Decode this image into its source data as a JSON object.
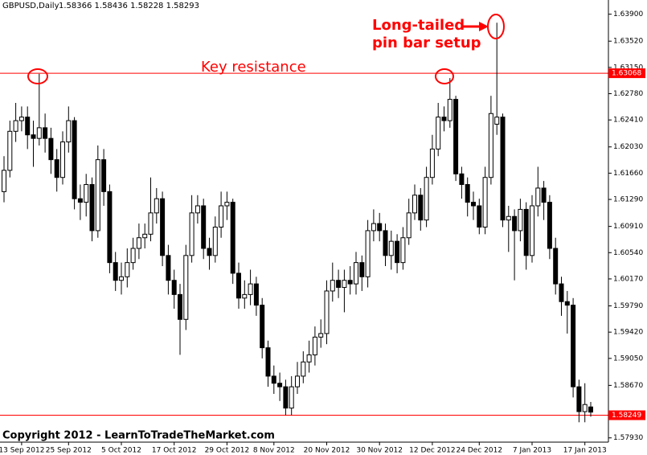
{
  "chart_data": {
    "type": "candlestick",
    "title": "GBPUSD,Daily",
    "subtitle": "1.58366 1.58436 1.58228 1.58293",
    "categories": [
      null,
      null,
      null,
      "13 Sep 2012",
      null,
      null,
      null,
      null,
      null,
      null,
      null,
      "25 Sep 2012",
      null,
      null,
      null,
      null,
      null,
      null,
      null,
      null,
      "5 Oct 2012",
      null,
      null,
      null,
      null,
      null,
      null,
      null,
      null,
      "17 Oct 2012",
      null,
      null,
      null,
      null,
      null,
      null,
      null,
      null,
      "29 Oct 2012",
      null,
      null,
      null,
      null,
      null,
      null,
      null,
      "8 Nov 2012",
      null,
      null,
      null,
      null,
      null,
      null,
      null,
      null,
      "20 Nov 2012",
      null,
      null,
      null,
      null,
      null,
      null,
      null,
      null,
      "30 Nov 2012",
      null,
      null,
      null,
      null,
      null,
      null,
      null,
      null,
      "12 Dec 2012",
      null,
      null,
      null,
      null,
      null,
      null,
      null,
      "24 Dec 2012",
      null,
      null,
      null,
      null,
      null,
      null,
      null,
      null,
      "7 Jan 2013",
      null,
      null,
      null,
      null,
      null,
      null,
      null,
      null,
      "17 Jan 2013",
      null
    ],
    "open": [
      1.614,
      1.617,
      1.6225,
      1.624,
      1.6245,
      1.622,
      1.6215,
      1.623,
      1.6215,
      1.6185,
      1.616,
      1.621,
      1.624,
      1.613,
      1.6125,
      1.615,
      1.6085,
      1.6185,
      1.614,
      1.604,
      1.6015,
      1.602,
      1.604,
      1.606,
      1.6075,
      1.608,
      1.611,
      1.613,
      1.605,
      1.6015,
      1.5995,
      1.596,
      1.605,
      1.611,
      1.612,
      1.606,
      1.605,
      1.609,
      1.612,
      1.6125,
      1.6025,
      1.599,
      1.5995,
      1.601,
      1.598,
      1.592,
      1.588,
      1.587,
      1.5865,
      1.5835,
      1.5865,
      1.588,
      1.59,
      1.591,
      1.5935,
      1.594,
      1.6,
      1.6015,
      1.6005,
      1.6015,
      1.601,
      1.604,
      1.602,
      1.6085,
      1.6095,
      1.6085,
      1.605,
      1.607,
      1.604,
      1.6075,
      1.611,
      1.6135,
      1.61,
      1.616,
      1.62,
      1.6245,
      1.624,
      1.627,
      1.6165,
      1.615,
      1.6125,
      1.612,
      1.609,
      1.616,
      1.6235,
      1.6245,
      1.61,
      1.6105,
      1.6085,
      1.6115,
      1.605,
      1.612,
      1.6145,
      1.6125,
      1.606,
      1.601,
      1.5985,
      1.598,
      1.5865,
      1.583,
      1.58366
    ],
    "high": [
      1.619,
      1.624,
      1.6265,
      1.626,
      1.626,
      1.624,
      1.6306,
      1.625,
      1.623,
      1.62,
      1.6225,
      1.626,
      1.6245,
      1.615,
      1.6165,
      1.616,
      1.6205,
      1.62,
      1.615,
      1.6055,
      1.604,
      1.606,
      1.6075,
      1.6095,
      1.6095,
      1.616,
      1.6145,
      1.614,
      1.6065,
      1.603,
      1.601,
      1.6065,
      1.6135,
      1.6135,
      1.613,
      1.6075,
      1.6105,
      1.614,
      1.614,
      1.613,
      1.604,
      1.6015,
      1.603,
      1.602,
      1.599,
      1.593,
      1.5895,
      1.5885,
      1.5875,
      1.588,
      1.59,
      1.5915,
      1.593,
      1.595,
      1.596,
      1.6015,
      1.604,
      1.603,
      1.603,
      1.6035,
      1.6055,
      1.605,
      1.61,
      1.6115,
      1.611,
      1.6095,
      1.6085,
      1.608,
      1.609,
      1.613,
      1.615,
      1.6145,
      1.6175,
      1.622,
      1.6265,
      1.626,
      1.63,
      1.6275,
      1.6175,
      1.616,
      1.614,
      1.613,
      1.6175,
      1.6275,
      1.6378,
      1.625,
      1.612,
      1.6115,
      1.613,
      1.6125,
      1.6135,
      1.6175,
      1.6155,
      1.6135,
      1.6075,
      1.602,
      1.6,
      1.599,
      1.5875,
      1.587,
      1.58436
    ],
    "low": [
      1.6125,
      1.616,
      1.621,
      1.6225,
      1.62,
      1.6175,
      1.6205,
      1.6195,
      1.6165,
      1.614,
      1.615,
      1.6195,
      1.6115,
      1.61,
      1.6105,
      1.607,
      1.6075,
      1.612,
      1.6025,
      1.6,
      1.5995,
      1.6005,
      1.603,
      1.6045,
      1.606,
      1.607,
      1.6095,
      1.6035,
      1.5995,
      1.5975,
      1.591,
      1.5945,
      1.604,
      1.6095,
      1.6045,
      1.603,
      1.604,
      1.6075,
      1.61,
      1.601,
      1.5975,
      1.5975,
      1.598,
      1.5965,
      1.5905,
      1.5865,
      1.5855,
      1.5845,
      1.5825,
      1.5825,
      1.5855,
      1.587,
      1.5885,
      1.5895,
      1.592,
      1.5925,
      1.5985,
      1.599,
      1.597,
      1.5995,
      1.5995,
      1.6,
      1.6005,
      1.607,
      1.607,
      1.6035,
      1.603,
      1.6025,
      1.603,
      1.6065,
      1.61,
      1.6085,
      1.609,
      1.615,
      1.619,
      1.6225,
      1.623,
      1.6155,
      1.613,
      1.6105,
      1.61,
      1.608,
      1.608,
      1.615,
      1.622,
      1.609,
      1.6055,
      1.6015,
      1.607,
      1.603,
      1.604,
      1.6105,
      1.61,
      1.6045,
      1.5995,
      1.5965,
      1.594,
      1.585,
      1.5815,
      1.5815,
      1.58228
    ],
    "close": [
      1.617,
      1.6225,
      1.624,
      1.6245,
      1.622,
      1.6215,
      1.623,
      1.6215,
      1.6185,
      1.616,
      1.621,
      1.624,
      1.613,
      1.6125,
      1.615,
      1.6085,
      1.6185,
      1.614,
      1.604,
      1.6015,
      1.602,
      1.604,
      1.606,
      1.6075,
      1.608,
      1.611,
      1.613,
      1.605,
      1.6015,
      1.5995,
      1.596,
      1.605,
      1.611,
      1.612,
      1.606,
      1.605,
      1.609,
      1.612,
      1.6125,
      1.6025,
      1.599,
      1.5995,
      1.601,
      1.598,
      1.592,
      1.588,
      1.587,
      1.5865,
      1.5835,
      1.5865,
      1.588,
      1.59,
      1.591,
      1.5935,
      1.594,
      1.6,
      1.6015,
      1.6005,
      1.6015,
      1.601,
      1.604,
      1.602,
      1.6085,
      1.6095,
      1.6085,
      1.605,
      1.607,
      1.604,
      1.6075,
      1.611,
      1.6135,
      1.61,
      1.616,
      1.62,
      1.6245,
      1.624,
      1.627,
      1.6165,
      1.615,
      1.6125,
      1.612,
      1.609,
      1.616,
      1.625,
      1.6245,
      1.61,
      1.6105,
      1.6085,
      1.6115,
      1.605,
      1.612,
      1.6145,
      1.6125,
      1.606,
      1.601,
      1.5985,
      1.598,
      1.5865,
      1.583,
      1.584,
      1.58293
    ],
    "ylim": [
      1.5787,
      1.641
    ],
    "yticks": [
      {
        "value": 1.639,
        "label": "1.63900"
      },
      {
        "value": 1.6352,
        "label": "1.63520"
      },
      {
        "value": 1.6315,
        "label": "1.63150"
      },
      {
        "value": 1.6278,
        "label": "1.62780"
      },
      {
        "value": 1.6241,
        "label": "1.62410"
      },
      {
        "value": 1.6203,
        "label": "1.62030"
      },
      {
        "value": 1.6166,
        "label": "1.61660"
      },
      {
        "value": 1.6129,
        "label": "1.61290"
      },
      {
        "value": 1.6091,
        "label": "1.60910"
      },
      {
        "value": 1.6054,
        "label": "1.60540"
      },
      {
        "value": 1.6017,
        "label": "1.60170"
      },
      {
        "value": 1.5979,
        "label": "1.59790"
      },
      {
        "value": 1.5942,
        "label": "1.59420"
      },
      {
        "value": 1.5905,
        "label": "1.59050"
      },
      {
        "value": 1.5867,
        "label": "1.58670"
      },
      {
        "value": 1.5793,
        "label": "1.57930"
      }
    ],
    "hlines": [
      {
        "value": 1.63068,
        "label": "1.63068"
      },
      {
        "value": 1.58249,
        "label": "1.58249"
      }
    ],
    "annotations": [
      "Key resistance",
      "Long-tailed",
      "pin bar setup",
      "Copyright 2012 - LearnToTradeTheMarket.com"
    ],
    "color": "#ff0000"
  }
}
